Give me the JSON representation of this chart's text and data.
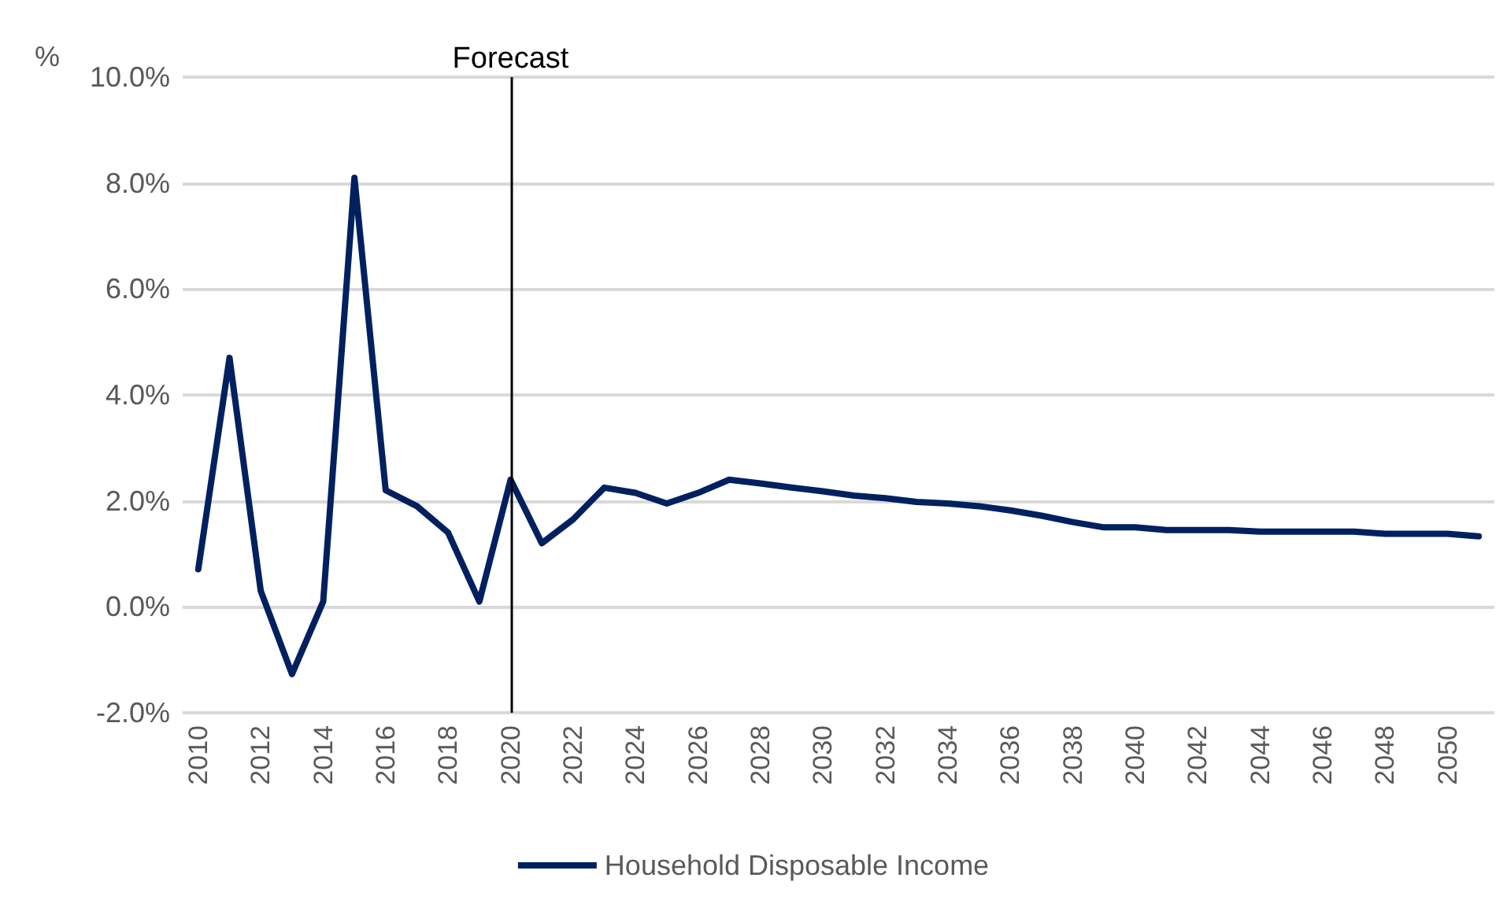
{
  "chart_data": {
    "type": "line",
    "ylabel": "%",
    "categories": [
      "2010",
      null,
      "2012",
      null,
      "2014",
      null,
      "2016",
      null,
      "2018",
      null,
      "2020",
      null,
      "2022",
      null,
      "2024",
      null,
      "2026",
      null,
      "2028",
      null,
      "2030",
      null,
      "2032",
      null,
      "2034",
      null,
      "2036",
      null,
      "2038",
      null,
      "2040",
      null,
      "2042",
      null,
      "2044",
      null,
      "2046",
      null,
      "2048",
      null,
      "2050",
      null
    ],
    "series": [
      {
        "name": "Household Disposable Income",
        "color": "#002060",
        "values": [
          0.71,
          4.7,
          0.3,
          -1.27,
          0.1,
          8.1,
          2.2,
          1.9,
          1.4,
          0.1,
          2.4,
          1.2,
          1.65,
          2.25,
          2.15,
          1.95,
          2.15,
          2.4,
          2.33,
          2.25,
          2.18,
          2.1,
          2.05,
          1.98,
          1.95,
          1.9,
          1.82,
          1.72,
          1.6,
          1.5,
          1.5,
          1.45,
          1.45,
          1.45,
          1.42,
          1.42,
          1.42,
          1.42,
          1.38,
          1.38,
          1.38,
          1.33
        ]
      }
    ],
    "ylim": [
      -2,
      10
    ],
    "yticks": [
      {
        "value": -2,
        "label": "-2.0%"
      },
      {
        "value": 0,
        "label": "0.0%"
      },
      {
        "value": 2,
        "label": "2.0%"
      },
      {
        "value": 4,
        "label": "4.0%"
      },
      {
        "value": 6,
        "label": "6.0%"
      },
      {
        "value": 8,
        "label": "8.0%"
      },
      {
        "value": 10,
        "label": "10.0%"
      }
    ],
    "ref_lines": [
      {
        "axis": "x",
        "value": "2020",
        "label": "Forecast",
        "color": "#000000"
      }
    ],
    "grid": "y",
    "legend": "bottom",
    "marker": "none",
    "line_style": "solid"
  }
}
